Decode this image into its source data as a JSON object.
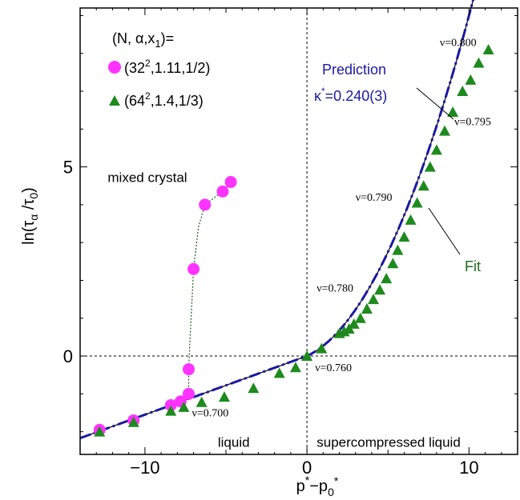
{
  "chart_data": {
    "type": "scatter",
    "xlabel": "p*−p0*",
    "ylabel": "ln(τα/τ0)",
    "xlim": [
      -14,
      13
    ],
    "ylim": [
      -2.6,
      9.2
    ],
    "x_ticks": [
      -10,
      0,
      10
    ],
    "y_ticks": [
      0,
      5
    ],
    "x_tick_labels": [
      "−10",
      "0",
      "10"
    ],
    "y_tick_labels": [
      "0",
      "5"
    ],
    "grid": false,
    "reference_lines": [
      {
        "axis": "x",
        "value": 0,
        "style": "dotted"
      },
      {
        "axis": "y",
        "value": 0,
        "style": "dotted"
      }
    ],
    "legend": {
      "title": "(N, α,x1)=",
      "placement": "top-left",
      "entries": [
        {
          "label": "(32²,1.11,1/2)",
          "marker": "circle",
          "color": "#ff33ff"
        },
        {
          "label": "(64²,1.4,1/3)",
          "marker": "triangle",
          "color": "#1e8a1e"
        }
      ]
    },
    "series": [
      {
        "name": "(32²,1.11,1/2)",
        "marker": "circle",
        "color": "#ff33ff",
        "points": [
          [
            -12.8,
            -1.95
          ],
          [
            -10.7,
            -1.7
          ],
          [
            -8.4,
            -1.3
          ],
          [
            -7.8,
            -1.2
          ],
          [
            -7.3,
            -1.0
          ],
          [
            -7.3,
            -0.35
          ],
          [
            -7.0,
            2.3
          ],
          [
            -6.3,
            4.0
          ],
          [
            -5.2,
            4.35
          ],
          [
            -4.7,
            4.6
          ]
        ]
      },
      {
        "name": "(64²,1.4,1/3)",
        "marker": "triangle",
        "color": "#1e8a1e",
        "points": [
          [
            -12.8,
            -2.0
          ],
          [
            -10.7,
            -1.75
          ],
          [
            -8.4,
            -1.45
          ],
          [
            -7.6,
            -1.35
          ],
          [
            -6.5,
            -1.22
          ],
          [
            -5.1,
            -1.08
          ],
          [
            -3.3,
            -0.85
          ],
          [
            -1.7,
            -0.45
          ],
          [
            -0.7,
            -0.3
          ],
          [
            0.0,
            0.0
          ],
          [
            0.9,
            0.2
          ],
          [
            2.0,
            0.6
          ],
          [
            2.3,
            0.65
          ],
          [
            2.6,
            0.72
          ],
          [
            2.9,
            0.85
          ],
          [
            3.3,
            1.0
          ],
          [
            3.7,
            1.25
          ],
          [
            4.1,
            1.5
          ],
          [
            4.5,
            1.75
          ],
          [
            4.9,
            2.05
          ],
          [
            5.3,
            2.45
          ],
          [
            5.6,
            2.8
          ],
          [
            6.0,
            3.15
          ],
          [
            6.4,
            3.6
          ],
          [
            6.8,
            4.05
          ],
          [
            7.2,
            4.5
          ],
          [
            7.6,
            5.0
          ],
          [
            8.0,
            5.45
          ],
          [
            8.5,
            5.95
          ],
          [
            9.0,
            6.45
          ],
          [
            9.6,
            7.0
          ],
          [
            10.1,
            7.3
          ],
          [
            10.6,
            7.75
          ],
          [
            11.2,
            8.1
          ]
        ]
      }
    ],
    "curves": [
      {
        "name": "Prediction",
        "style": "dash-dot",
        "color": "#1a1aa0"
      },
      {
        "name": "Fit",
        "style": "solid",
        "color": "#000000"
      },
      {
        "name": "guide",
        "style": "dotted",
        "color": "#1e5a1e"
      }
    ],
    "annotations": [
      {
        "text": "ν=0.800",
        "x": 8.2,
        "y": 8.2
      },
      {
        "text": "ν=0.795",
        "x": 9.1,
        "y": 6.1
      },
      {
        "text": "ν=0.790",
        "x": 3.0,
        "y": 4.1
      },
      {
        "text": "ν=0.780",
        "x": 0.6,
        "y": 1.7
      },
      {
        "text": "ν=0.760",
        "x": 0.5,
        "y": -0.4
      },
      {
        "text": "ν=0.700",
        "x": -7.1,
        "y": -1.6
      },
      {
        "text": "mixed crystal",
        "x": -12.3,
        "y": 4.6
      },
      {
        "text": "liquid",
        "x": -5.5,
        "y": -2.4
      },
      {
        "text": "supercompressed liquid",
        "x": 0.6,
        "y": -2.4
      }
    ],
    "prediction_label": {
      "line1": "Prediction",
      "line2": "κ*=0.240(3)"
    },
    "fit_label": "Fit"
  }
}
